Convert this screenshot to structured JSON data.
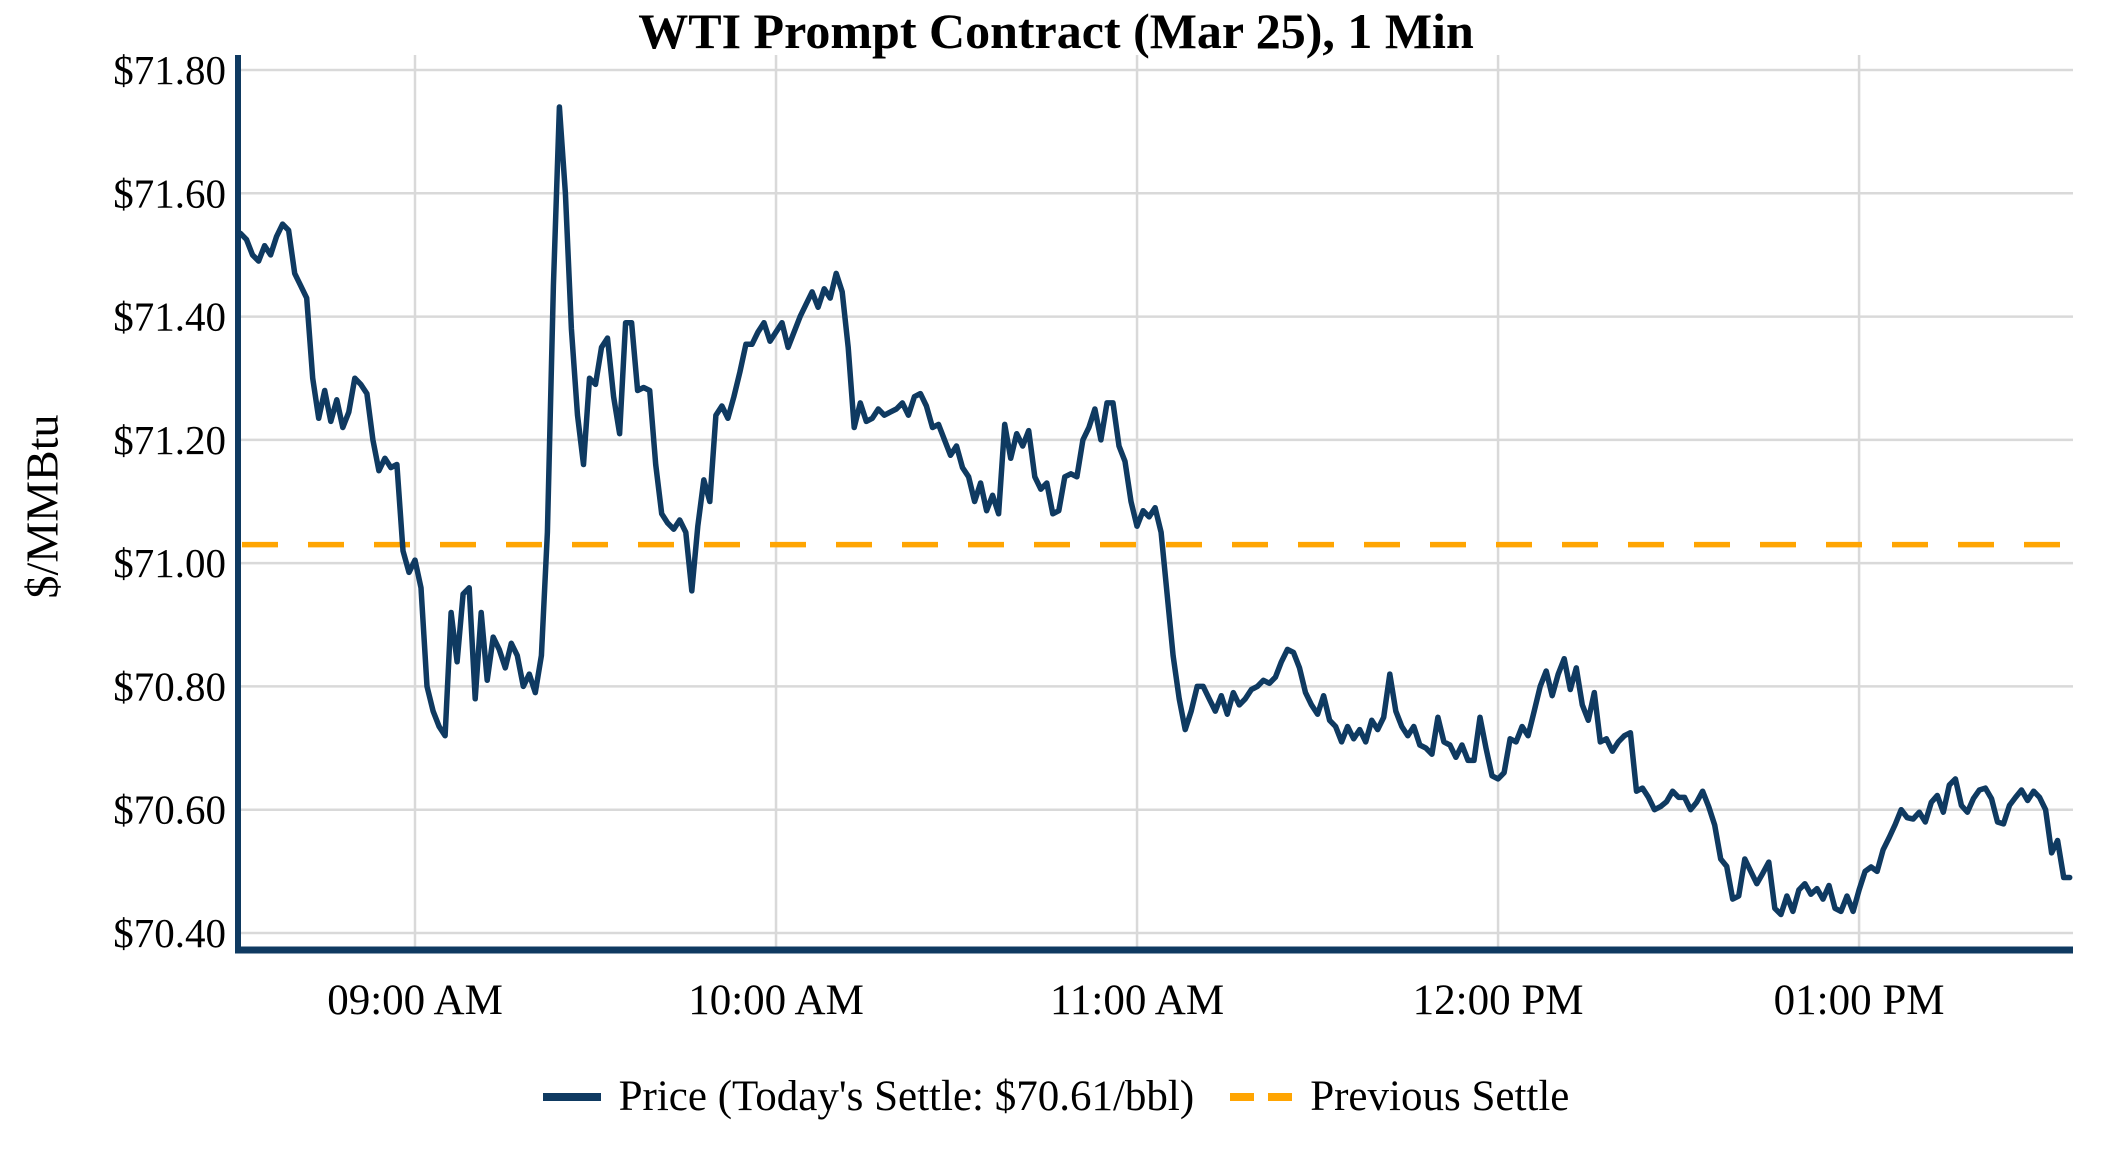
{
  "chart_data": {
    "type": "line",
    "title": "WTI Prompt Contract (Mar 25), 1 Min",
    "ylabel": "$/MMBtu",
    "xlabel": "",
    "grid": true,
    "legend_position": "bottom-center",
    "ylim": [
      70.4,
      71.8
    ],
    "y_ticks": [
      {
        "label": "$71.80",
        "value": 71.8
      },
      {
        "label": "$71.60",
        "value": 71.6
      },
      {
        "label": "$71.40",
        "value": 71.4
      },
      {
        "label": "$71.20",
        "value": 71.2
      },
      {
        "label": "$71.00",
        "value": 71.0
      },
      {
        "label": "$70.80",
        "value": 70.8
      },
      {
        "label": "$70.60",
        "value": 70.6
      },
      {
        "label": "$70.40",
        "value": 70.4
      }
    ],
    "x_ticks": [
      {
        "label": "09:00 AM",
        "minute": 29
      },
      {
        "label": "10:00 AM",
        "minute": 89
      },
      {
        "label": "11:00 AM",
        "minute": 149
      },
      {
        "label": "12:00 PM",
        "minute": 209
      },
      {
        "label": "01:00 PM",
        "minute": 269
      }
    ],
    "x_start_label": "08:31 AM",
    "x_end_label": "01:35 PM",
    "interval_minutes": 1,
    "previous_settle": 71.03,
    "todays_settle_text": "$70.61/bbl",
    "series": [
      {
        "name": "Price (Today's Settle: $70.61/bbl)",
        "style": "solid",
        "color": "#0f3a61",
        "values": [
          71.535,
          71.525,
          71.5,
          71.49,
          71.515,
          71.5,
          71.53,
          71.55,
          71.54,
          71.47,
          71.45,
          71.43,
          71.3,
          71.235,
          71.28,
          71.23,
          71.265,
          71.22,
          71.245,
          71.3,
          71.29,
          71.275,
          71.2,
          71.15,
          71.17,
          71.155,
          71.16,
          71.02,
          70.985,
          71.005,
          70.96,
          70.8,
          70.76,
          70.735,
          70.72,
          70.92,
          70.84,
          70.95,
          70.96,
          70.78,
          70.92,
          70.81,
          70.88,
          70.86,
          70.83,
          70.87,
          70.85,
          70.8,
          70.82,
          70.79,
          70.85,
          71.05,
          71.45,
          71.74,
          71.6,
          71.38,
          71.24,
          71.16,
          71.3,
          71.29,
          71.35,
          71.365,
          71.27,
          71.21,
          71.39,
          71.39,
          71.28,
          71.285,
          71.28,
          71.16,
          71.08,
          71.065,
          71.055,
          71.07,
          71.05,
          70.955,
          71.06,
          71.135,
          71.1,
          71.24,
          71.255,
          71.235,
          71.27,
          71.31,
          71.355,
          71.355,
          71.375,
          71.39,
          71.36,
          71.375,
          71.39,
          71.35,
          71.375,
          71.4,
          71.42,
          71.44,
          71.415,
          71.445,
          71.43,
          71.47,
          71.44,
          71.35,
          71.22,
          71.26,
          71.23,
          71.235,
          71.25,
          71.24,
          71.245,
          71.25,
          71.26,
          71.24,
          71.27,
          71.275,
          71.255,
          71.22,
          71.225,
          71.2,
          71.175,
          71.19,
          71.155,
          71.14,
          71.1,
          71.13,
          71.085,
          71.11,
          71.08,
          71.225,
          71.17,
          71.21,
          71.19,
          71.215,
          71.14,
          71.12,
          71.13,
          71.08,
          71.085,
          71.14,
          71.145,
          71.14,
          71.2,
          71.22,
          71.25,
          71.2,
          71.26,
          71.26,
          71.19,
          71.165,
          71.1,
          71.06,
          71.085,
          71.075,
          71.09,
          71.05,
          70.95,
          70.85,
          70.78,
          70.73,
          70.76,
          70.8,
          70.8,
          70.78,
          70.76,
          70.785,
          70.755,
          70.79,
          70.77,
          70.78,
          70.795,
          70.8,
          70.81,
          70.805,
          70.815,
          70.84,
          70.86,
          70.855,
          70.83,
          70.79,
          70.77,
          70.755,
          70.785,
          70.745,
          70.735,
          70.71,
          70.735,
          70.715,
          70.73,
          70.71,
          70.745,
          70.73,
          70.75,
          70.82,
          70.76,
          70.735,
          70.72,
          70.735,
          70.705,
          70.7,
          70.69,
          70.75,
          70.71,
          70.705,
          70.685,
          70.705,
          70.68,
          70.68,
          70.75,
          70.7,
          70.655,
          70.65,
          70.66,
          70.715,
          70.71,
          70.735,
          70.72,
          70.76,
          70.8,
          70.825,
          70.785,
          70.82,
          70.845,
          70.795,
          70.83,
          70.77,
          70.745,
          70.79,
          70.71,
          70.715,
          70.695,
          70.71,
          70.72,
          70.725,
          70.63,
          70.635,
          70.62,
          70.6,
          70.605,
          70.613,
          70.63,
          70.62,
          70.62,
          70.6,
          70.612,
          70.63,
          70.605,
          70.575,
          70.52,
          70.508,
          70.455,
          70.46,
          70.52,
          70.5,
          70.48,
          70.497,
          70.515,
          70.44,
          70.43,
          70.46,
          70.435,
          70.47,
          70.48,
          70.463,
          70.472,
          70.455,
          70.477,
          70.44,
          70.435,
          70.46,
          70.435,
          70.47,
          70.5,
          70.507,
          70.5,
          70.535,
          70.555,
          70.576,
          70.6,
          70.587,
          70.585,
          70.596,
          70.58,
          70.612,
          70.623,
          70.596,
          70.64,
          70.65,
          70.607,
          70.596,
          70.618,
          70.632,
          70.635,
          70.618,
          70.58,
          70.577,
          70.607,
          70.62,
          70.632,
          70.615,
          70.63,
          70.62,
          70.6,
          70.53,
          70.55,
          70.49,
          70.49
        ]
      },
      {
        "name": "Previous Settle",
        "style": "dashed",
        "color": "#ffa502",
        "value": 71.03
      }
    ]
  },
  "legend": {
    "price_label": "Price (Today's Settle: $70.61/bbl)",
    "settle_label": "Previous Settle"
  },
  "colors": {
    "price_line": "#0f3a61",
    "previous_settle": "#ffa502",
    "gridline": "#d9d9d9",
    "axis": "#0f3a61",
    "background": "#ffffff"
  }
}
